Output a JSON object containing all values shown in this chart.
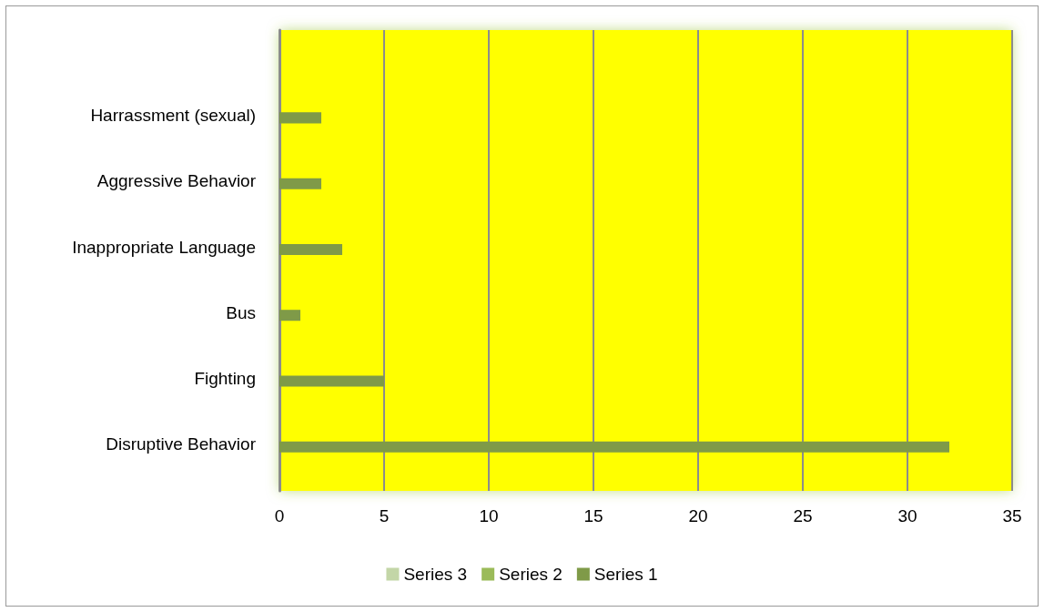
{
  "chart_data": {
    "type": "bar",
    "orientation": "horizontal",
    "categories": [
      null,
      "Harrassment (sexual)",
      "Aggressive Behavior",
      "Inappropriate Language",
      "Bus",
      "Fighting",
      "Disruptive Behavior"
    ],
    "series": [
      {
        "name": "Series 3",
        "color": "#c3d6a7",
        "values": [
          null,
          null,
          null,
          null,
          null,
          null,
          null
        ]
      },
      {
        "name": "Series 2",
        "color": "#9bbb59",
        "values": [
          null,
          null,
          null,
          null,
          null,
          null,
          null
        ]
      },
      {
        "name": "Series 1",
        "color": "#7f9a48",
        "values": [
          null,
          2,
          2,
          3,
          1,
          5,
          32
        ]
      }
    ],
    "xlim": [
      0,
      35
    ],
    "xticks": [
      0,
      5,
      10,
      15,
      20,
      25,
      30,
      35
    ],
    "grid": "x",
    "legend": "bottom"
  }
}
